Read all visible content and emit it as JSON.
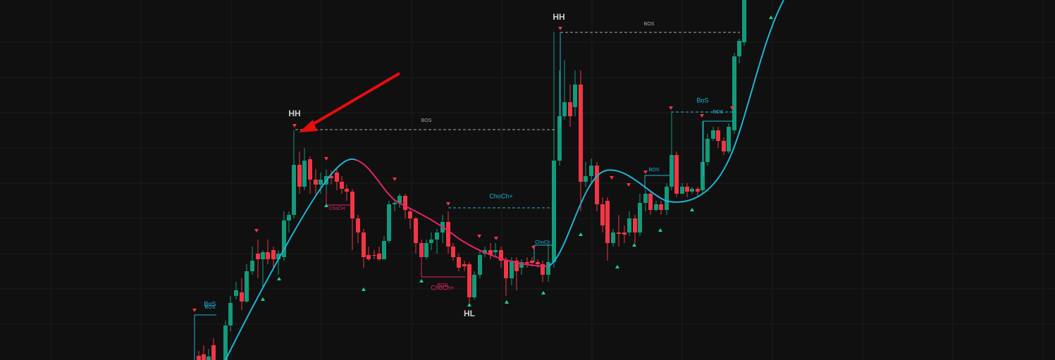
{
  "labels": {
    "hh_left": "HH",
    "hh_right": "HH",
    "hl": "HL",
    "bos_top_left": "BOS",
    "bos_top_right": "BOS",
    "bos_small_right": "BoS",
    "bos_small_right2": "BOS",
    "bos_mid_right": "BOS",
    "choch_plus_mid": "ChoCh+",
    "choch_left": "ChoCH",
    "choch_right": "ChoCh",
    "bos_low_mid": "BOS",
    "choch_plus_low": "ChoCh+",
    "bos_bottom_left": "BoS",
    "bos_bottom_left2": "BOS"
  }
}
